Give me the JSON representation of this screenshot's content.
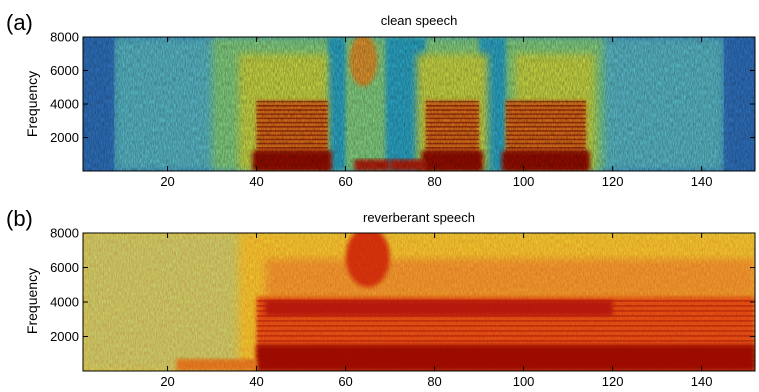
{
  "figure": {
    "panel_a": {
      "tag": "(a)",
      "title": "clean speech",
      "ylabel": "Frequency"
    },
    "panel_b": {
      "tag": "(b)",
      "title": "reverberant speech",
      "ylabel": "Frequency"
    }
  },
  "chart_data": [
    {
      "type": "heatmap",
      "title": "clean speech",
      "ylabel": "Frequency",
      "xlabel": "",
      "xlim": [
        1,
        152
      ],
      "ylim": [
        0,
        8000
      ],
      "xticks": [
        20,
        40,
        60,
        80,
        100,
        120,
        140
      ],
      "yticks": [
        2000,
        4000,
        6000,
        8000
      ],
      "colormap": "jet",
      "colors": {
        "low": "#00008f",
        "mid": "#7fff7f",
        "high": "#800000"
      },
      "segments": [
        {
          "x": [
            8,
            32
          ],
          "level": "low"
        },
        {
          "x": [
            40,
            56
          ],
          "level": "high",
          "band_hz": [
            0,
            4200
          ]
        },
        {
          "x": [
            60,
            68
          ],
          "level": "high",
          "band_hz": [
            5000,
            8000
          ]
        },
        {
          "x": [
            78,
            90
          ],
          "level": "high",
          "band_hz": [
            0,
            4200
          ]
        },
        {
          "x": [
            96,
            114
          ],
          "level": "high",
          "band_hz": [
            0,
            4200
          ]
        },
        {
          "x": [
            114,
            145
          ],
          "level": "low"
        }
      ]
    },
    {
      "type": "heatmap",
      "title": "reverberant speech",
      "ylabel": "Frequency",
      "xlabel": "",
      "xlim": [
        1,
        152
      ],
      "ylim": [
        0,
        8000
      ],
      "xticks": [
        20,
        40,
        60,
        80,
        100,
        120,
        140
      ],
      "yticks": [
        2000,
        4000,
        6000,
        8000
      ],
      "colormap": "jet",
      "segments": [
        {
          "x": [
            1,
            40
          ],
          "level": "mid"
        },
        {
          "x": [
            40,
            152
          ],
          "level": "high",
          "band_hz": [
            0,
            4200
          ]
        },
        {
          "x": [
            60,
            70
          ],
          "level": "high",
          "band_hz": [
            5000,
            8000
          ]
        }
      ]
    }
  ]
}
